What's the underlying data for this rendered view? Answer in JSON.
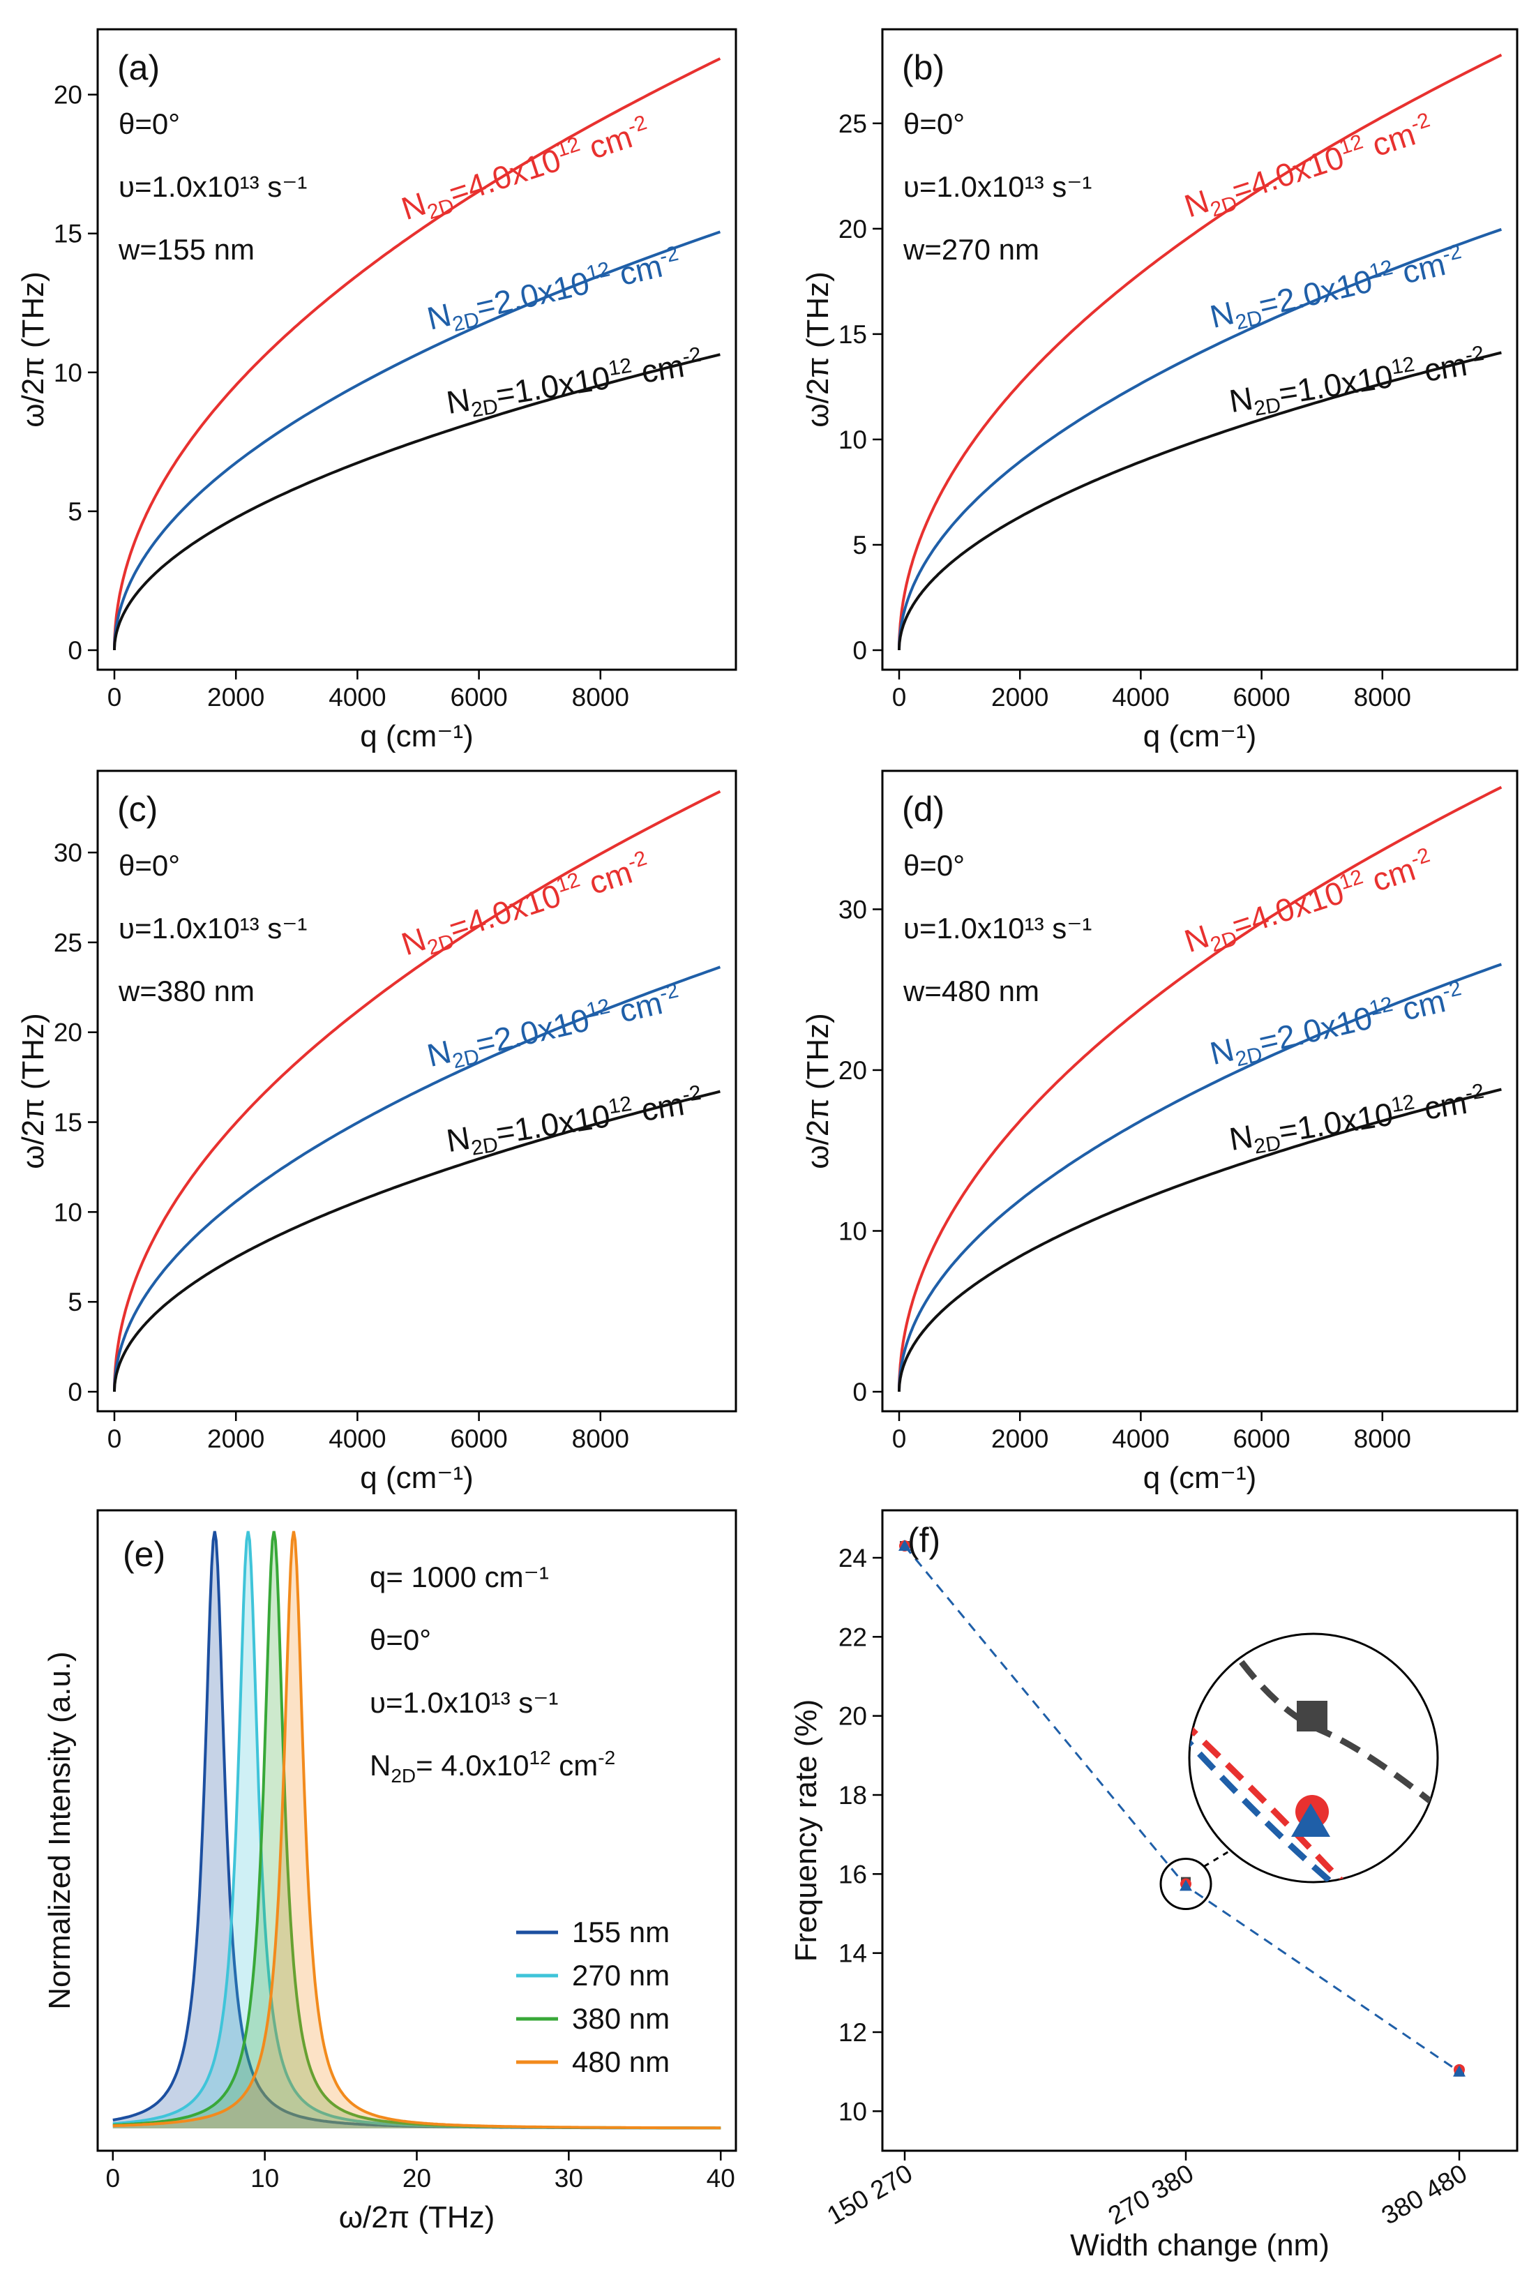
{
  "colors": {
    "red": "#e8312f",
    "blue": "#1f5fa8",
    "black": "#111111",
    "c155": "#1c4fa0",
    "c270": "#3fc4d9",
    "c380": "#38a838",
    "c480": "#f28a1c",
    "gray": "#444444"
  },
  "chart_data": [
    {
      "id": "a",
      "type": "line",
      "panel_label": "(a)",
      "xlabel": "q (cm⁻¹)",
      "ylabel": "ω/2π (THz)",
      "xlim": [
        0,
        10000
      ],
      "ylim": [
        0,
        22
      ],
      "xticks": [
        0,
        2000,
        4000,
        6000,
        8000
      ],
      "yticks": [
        0,
        5,
        10,
        15,
        20
      ],
      "annotations": [
        "θ=0°",
        "υ=1.0x10¹³ s⁻¹",
        "w=155 nm"
      ],
      "series": [
        {
          "name": "N2D=4.0x10¹² cm⁻²",
          "label_main": "N",
          "label_sub": "2D",
          "label_mid": "=4.0x10",
          "label_sup1": "12",
          "label_unit": " cm",
          "label_sup2": "-2",
          "color": "red",
          "k": 0.2133
        },
        {
          "name": "N2D=2.0x10¹² cm⁻²",
          "label_main": "N",
          "label_sub": "2D",
          "label_mid": "=2.0x10",
          "label_sup1": "12",
          "label_unit": " cm",
          "label_sup2": "-2",
          "color": "blue",
          "k": 0.1508
        },
        {
          "name": "N2D=1.0x10¹² cm⁻²",
          "label_main": "N",
          "label_sub": "2D",
          "label_mid": "=1.0x10",
          "label_sup1": "12",
          "label_unit": " cm",
          "label_sup2": "-2",
          "color": "black",
          "k": 0.1066
        }
      ]
    },
    {
      "id": "b",
      "type": "line",
      "panel_label": "(b)",
      "xlabel": "q (cm⁻¹)",
      "ylabel": "ω/2π (THz)",
      "xlim": [
        0,
        10000
      ],
      "ylim": [
        0,
        29
      ],
      "xticks": [
        0,
        2000,
        4000,
        6000,
        8000
      ],
      "yticks": [
        0,
        5,
        10,
        15,
        20,
        25
      ],
      "annotations": [
        "θ=0°",
        "υ=1.0x10¹³ s⁻¹",
        "w=270 nm"
      ],
      "series": [
        {
          "name": "N2D=4.0x10¹² cm⁻²",
          "label_main": "N",
          "label_sub": "2D",
          "label_mid": "=4.0x10",
          "label_sup1": "12",
          "label_unit": " cm",
          "label_sup2": "-2",
          "color": "red",
          "k": 0.2829
        },
        {
          "name": "N2D=2.0x10¹² cm⁻²",
          "label_main": "N",
          "label_sub": "2D",
          "label_mid": "=2.0x10",
          "label_sup1": "12",
          "label_unit": " cm",
          "label_sup2": "-2",
          "color": "blue",
          "k": 0.2
        },
        {
          "name": "N2D=1.0x10¹² cm⁻²",
          "label_main": "N",
          "label_sub": "2D",
          "label_mid": "=1.0x10",
          "label_sup1": "12",
          "label_unit": " cm",
          "label_sup2": "-2",
          "color": "black",
          "k": 0.1414
        }
      ]
    },
    {
      "id": "c",
      "type": "line",
      "panel_label": "(c)",
      "xlabel": "q (cm⁻¹)",
      "ylabel": "ω/2π (THz)",
      "xlim": [
        0,
        10000
      ],
      "ylim": [
        0,
        34
      ],
      "xticks": [
        0,
        2000,
        4000,
        6000,
        8000
      ],
      "yticks": [
        0,
        5,
        10,
        15,
        20,
        25,
        30
      ],
      "annotations": [
        "θ=0°",
        "υ=1.0x10¹³ s⁻¹",
        "w=380 nm"
      ],
      "series": [
        {
          "name": "N2D=4.0x10¹² cm⁻²",
          "label_main": "N",
          "label_sub": "2D",
          "label_mid": "=4.0x10",
          "label_sup1": "12",
          "label_unit": " cm",
          "label_sup2": "-2",
          "color": "red",
          "k": 0.3345
        },
        {
          "name": "N2D=2.0x10¹² cm⁻²",
          "label_main": "N",
          "label_sub": "2D",
          "label_mid": "=2.0x10",
          "label_sup1": "12",
          "label_unit": " cm",
          "label_sup2": "-2",
          "color": "blue",
          "k": 0.2366
        },
        {
          "name": "N2D=1.0x10¹² cm⁻²",
          "label_main": "N",
          "label_sub": "2D",
          "label_mid": "=1.0x10",
          "label_sup1": "12",
          "label_unit": " cm",
          "label_sup2": "-2",
          "color": "black",
          "k": 0.1673
        }
      ]
    },
    {
      "id": "d",
      "type": "line",
      "panel_label": "(d)",
      "xlabel": "q (cm⁻¹)",
      "ylabel": "ω/2π (THz)",
      "xlim": [
        0,
        10000
      ],
      "ylim": [
        0,
        38
      ],
      "xticks": [
        0,
        2000,
        4000,
        6000,
        8000
      ],
      "yticks": [
        0,
        10,
        20,
        30
      ],
      "annotations": [
        "θ=0°",
        "υ=1.0x10¹³ s⁻¹",
        "w=480 nm"
      ],
      "series": [
        {
          "name": "N2D=4.0x10¹² cm⁻²",
          "label_main": "N",
          "label_sub": "2D",
          "label_mid": "=4.0x10",
          "label_sup1": "12",
          "label_unit": " cm",
          "label_sup2": "-2",
          "color": "red",
          "k": 0.3765
        },
        {
          "name": "N2D=2.0x10¹² cm⁻²",
          "label_main": "N",
          "label_sub": "2D",
          "label_mid": "=2.0x10",
          "label_sup1": "12",
          "label_unit": " cm",
          "label_sup2": "-2",
          "color": "blue",
          "k": 0.2662
        },
        {
          "name": "N2D=1.0x10¹² cm⁻²",
          "label_main": "N",
          "label_sub": "2D",
          "label_mid": "=1.0x10",
          "label_sup1": "12",
          "label_unit": " cm",
          "label_sup2": "-2",
          "color": "black",
          "k": 0.1883
        }
      ]
    },
    {
      "id": "e",
      "type": "line",
      "panel_label": "(e)",
      "xlabel": "ω/2π (THz)",
      "ylabel": "Normalized Intensity (a.u.)",
      "xlim": [
        -1,
        41
      ],
      "ylim": [
        0,
        1.05
      ],
      "xticks": [
        0,
        10,
        20,
        30,
        40
      ],
      "annotations": [
        "q= 1000 cm⁻¹",
        "θ=0°",
        "υ=1.0x10¹³ s⁻¹",
        "N2D= 4.0x10¹² cm⁻²"
      ],
      "anno_nsub": "2D",
      "anno_n_rest": "= 4.0x10",
      "anno_sup1": "12",
      "anno_unit": " cm",
      "anno_sup2": "-2",
      "legend_position": "bottom-right",
      "series": [
        {
          "name": "155 nm",
          "color": "c155",
          "peak_THz": 6.7,
          "hwhm_THz": 0.8
        },
        {
          "name": "270 nm",
          "color": "c270",
          "peak_THz": 8.9,
          "hwhm_THz": 0.8
        },
        {
          "name": "380 nm",
          "color": "c380",
          "peak_THz": 10.6,
          "hwhm_THz": 0.8
        },
        {
          "name": "480 nm",
          "color": "c480",
          "peak_THz": 11.9,
          "hwhm_THz": 0.8
        }
      ]
    },
    {
      "id": "f",
      "type": "scatter",
      "panel_label": "(f)",
      "xlabel": "Width change (nm)",
      "ylabel": "Frequency rate (%)",
      "ylim": [
        9,
        25.2
      ],
      "yticks": [
        10,
        12,
        14,
        16,
        18,
        20,
        22,
        24
      ],
      "categories": [
        "150 - 270",
        "270 - 380",
        "380 - 480"
      ],
      "category_parts": [
        [
          "150",
          "270"
        ],
        [
          "270",
          "380"
        ],
        [
          "380",
          "480"
        ]
      ],
      "series": [
        {
          "name": "gray",
          "marker": "square",
          "color": "gray",
          "values": [
            24.3,
            15.8,
            11.0
          ]
        },
        {
          "name": "red",
          "marker": "circle",
          "color": "red",
          "values": [
            24.3,
            15.75,
            11.05
          ]
        },
        {
          "name": "blue",
          "marker": "triangle",
          "color": "blue",
          "values": [
            24.3,
            15.7,
            11.0
          ]
        }
      ]
    }
  ]
}
